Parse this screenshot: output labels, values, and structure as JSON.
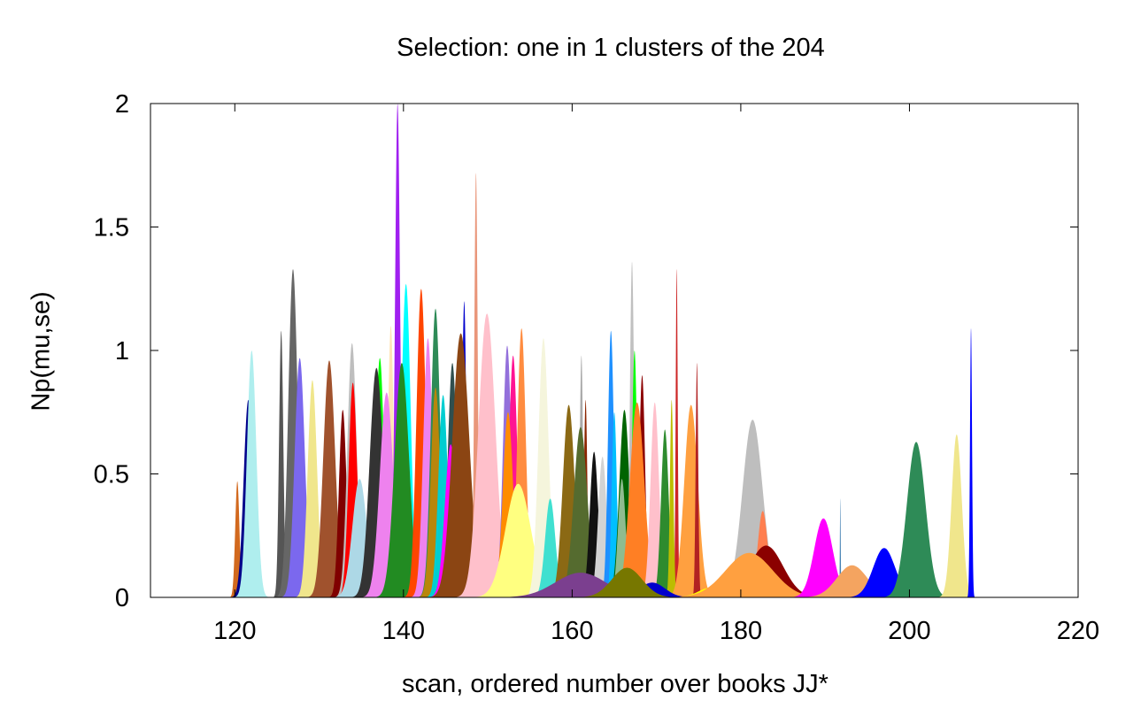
{
  "chart_data": {
    "type": "area",
    "title": "Selection: one in 1 clusters of the 204",
    "xlabel": "scan, ordered number over books JJ*",
    "ylabel": "Np(mu,se)",
    "xlim": [
      110,
      220
    ],
    "ylim": [
      0,
      2
    ],
    "xticks": [
      "120",
      "140",
      "160",
      "180",
      "200",
      "220"
    ],
    "yticks": [
      "0",
      "0.5",
      "1",
      "1.5",
      "2"
    ],
    "xtick_values": [
      120,
      140,
      160,
      180,
      200,
      220
    ],
    "ytick_values": [
      0,
      0.5,
      1,
      1.5,
      2
    ],
    "grid": false,
    "legend": "none",
    "series": [
      {
        "mu": 120.3,
        "sigma": 0.25,
        "peak": 0.47,
        "color": "#d2691e"
      },
      {
        "mu": 121.6,
        "sigma": 0.55,
        "peak": 0.8,
        "color": "#00008b"
      },
      {
        "mu": 122.0,
        "sigma": 0.55,
        "peak": 1.0,
        "color": "#afeeee"
      },
      {
        "mu": 125.5,
        "sigma": 0.25,
        "peak": 1.08,
        "color": "#555555"
      },
      {
        "mu": 126.6,
        "sigma": 0.25,
        "peak": 0.77,
        "color": "#ffa500"
      },
      {
        "mu": 126.9,
        "sigma": 0.55,
        "peak": 1.33,
        "color": "#666666"
      },
      {
        "mu": 127.7,
        "sigma": 0.6,
        "peak": 0.97,
        "color": "#7b68ee"
      },
      {
        "mu": 129.2,
        "sigma": 0.55,
        "peak": 0.88,
        "color": "#f0e68c"
      },
      {
        "mu": 131.2,
        "sigma": 0.7,
        "peak": 0.96,
        "color": "#a0522d"
      },
      {
        "mu": 132.8,
        "sigma": 0.45,
        "peak": 0.76,
        "color": "#800000"
      },
      {
        "mu": 133.9,
        "sigma": 0.55,
        "peak": 1.03,
        "color": "#bebebe"
      },
      {
        "mu": 134.0,
        "sigma": 0.5,
        "peak": 0.87,
        "color": "#ff0000"
      },
      {
        "mu": 134.8,
        "sigma": 0.85,
        "peak": 0.48,
        "color": "#add8e6"
      },
      {
        "mu": 136.2,
        "sigma": 0.55,
        "peak": 0.5,
        "color": "#9400d3"
      },
      {
        "mu": 137.2,
        "sigma": 0.5,
        "peak": 0.97,
        "color": "#00ff00"
      },
      {
        "mu": 136.8,
        "sigma": 0.8,
        "peak": 0.93,
        "color": "#333333"
      },
      {
        "mu": 138.5,
        "sigma": 0.35,
        "peak": 1.1,
        "color": "#ffe4b5"
      },
      {
        "mu": 138.0,
        "sigma": 0.8,
        "peak": 0.83,
        "color": "#ee82ee"
      },
      {
        "mu": 139.3,
        "sigma": 0.3,
        "peak": 2.0,
        "color": "#a020f0"
      },
      {
        "mu": 140.3,
        "sigma": 0.55,
        "peak": 1.27,
        "color": "#00ffff"
      },
      {
        "mu": 139.8,
        "sigma": 0.85,
        "peak": 0.95,
        "color": "#228b22"
      },
      {
        "mu": 142.1,
        "sigma": 0.55,
        "peak": 1.25,
        "color": "#ff4500"
      },
      {
        "mu": 142.9,
        "sigma": 0.55,
        "peak": 1.05,
        "color": "#ee82ee"
      },
      {
        "mu": 143.8,
        "sigma": 0.55,
        "peak": 1.17,
        "color": "#2e8b57"
      },
      {
        "mu": 143.8,
        "sigma": 0.55,
        "peak": 0.85,
        "color": "#b8860b"
      },
      {
        "mu": 144.7,
        "sigma": 0.55,
        "peak": 0.82,
        "color": "#00ced1"
      },
      {
        "mu": 145.8,
        "sigma": 0.55,
        "peak": 0.95,
        "color": "#2f4f4f"
      },
      {
        "mu": 145.6,
        "sigma": 0.7,
        "peak": 0.62,
        "color": "#ff00ff"
      },
      {
        "mu": 147.2,
        "sigma": 0.25,
        "peak": 1.2,
        "color": "#0000cd"
      },
      {
        "mu": 146.8,
        "sigma": 1.0,
        "peak": 1.07,
        "color": "#8b4513"
      },
      {
        "mu": 148.6,
        "sigma": 0.2,
        "peak": 1.72,
        "color": "#e9967a"
      },
      {
        "mu": 149.9,
        "sigma": 1.0,
        "peak": 1.15,
        "color": "#ffc0cb"
      },
      {
        "mu": 152.3,
        "sigma": 0.5,
        "peak": 1.02,
        "color": "#9370db"
      },
      {
        "mu": 153.0,
        "sigma": 0.5,
        "peak": 0.98,
        "color": "#ff1493"
      },
      {
        "mu": 152.4,
        "sigma": 0.6,
        "peak": 0.75,
        "color": "#ff8c00"
      },
      {
        "mu": 154.0,
        "sigma": 0.5,
        "peak": 1.09,
        "color": "#ff8c40"
      },
      {
        "mu": 153.6,
        "sigma": 1.5,
        "peak": 0.46,
        "color": "#ffff80"
      },
      {
        "mu": 156.6,
        "sigma": 0.6,
        "peak": 1.05,
        "color": "#f5f5dc"
      },
      {
        "mu": 157.4,
        "sigma": 0.6,
        "peak": 0.4,
        "color": "#40e0d0"
      },
      {
        "mu": 159.6,
        "sigma": 0.7,
        "peak": 0.78,
        "color": "#8b6914"
      },
      {
        "mu": 161.1,
        "sigma": 0.2,
        "peak": 0.98,
        "color": "#aaaaaa"
      },
      {
        "mu": 161.6,
        "sigma": 0.2,
        "peak": 0.8,
        "color": "#8b2500"
      },
      {
        "mu": 161.0,
        "sigma": 0.8,
        "peak": 0.69,
        "color": "#556b2f"
      },
      {
        "mu": 162.6,
        "sigma": 0.5,
        "peak": 0.59,
        "color": "#111111"
      },
      {
        "mu": 163.6,
        "sigma": 0.5,
        "peak": 0.57,
        "color": "#d3d3d3"
      },
      {
        "mu": 164.6,
        "sigma": 0.35,
        "peak": 1.08,
        "color": "#1e90ff"
      },
      {
        "mu": 165.0,
        "sigma": 0.3,
        "peak": 0.75,
        "color": "#00bfff"
      },
      {
        "mu": 166.2,
        "sigma": 0.6,
        "peak": 0.76,
        "color": "#006400"
      },
      {
        "mu": 165.9,
        "sigma": 0.45,
        "peak": 0.48,
        "color": "#8fbc8f"
      },
      {
        "mu": 167.1,
        "sigma": 0.25,
        "peak": 1.36,
        "color": "#c0c0c0"
      },
      {
        "mu": 167.4,
        "sigma": 0.3,
        "peak": 1.0,
        "color": "#00ff00"
      },
      {
        "mu": 168.3,
        "sigma": 0.35,
        "peak": 0.9,
        "color": "#8b0000"
      },
      {
        "mu": 167.7,
        "sigma": 0.85,
        "peak": 0.79,
        "color": "#ff7f24"
      },
      {
        "mu": 169.8,
        "sigma": 0.5,
        "peak": 0.79,
        "color": "#ffc0cb"
      },
      {
        "mu": 171.0,
        "sigma": 0.45,
        "peak": 0.68,
        "color": "#2e8b2e"
      },
      {
        "mu": 172.4,
        "sigma": 0.12,
        "peak": 1.33,
        "color": "#cd2626"
      },
      {
        "mu": 171.8,
        "sigma": 0.2,
        "peak": 0.8,
        "color": "#bcbc00"
      },
      {
        "mu": 174.1,
        "sigma": 0.8,
        "peak": 0.78,
        "color": "#ffa040"
      },
      {
        "mu": 174.8,
        "sigma": 0.15,
        "peak": 0.95,
        "color": "#b22222"
      },
      {
        "mu": 169.5,
        "sigma": 1.5,
        "peak": 0.06,
        "color": "#0000cd"
      },
      {
        "mu": 176.5,
        "sigma": 1.5,
        "peak": 0.04,
        "color": "#ffff00"
      },
      {
        "mu": 181.4,
        "sigma": 1.2,
        "peak": 0.72,
        "color": "#bebebe"
      },
      {
        "mu": 182.6,
        "sigma": 0.6,
        "peak": 0.35,
        "color": "#ff7f50"
      },
      {
        "mu": 183.0,
        "sigma": 2.0,
        "peak": 0.21,
        "color": "#8b0000"
      },
      {
        "mu": 181.0,
        "sigma": 2.8,
        "peak": 0.18,
        "color": "#ffa040"
      },
      {
        "mu": 189.8,
        "sigma": 1.1,
        "peak": 0.32,
        "color": "#ff00ff"
      },
      {
        "mu": 191.8,
        "sigma": 0.05,
        "peak": 0.4,
        "color": "#4682b4"
      },
      {
        "mu": 193.2,
        "sigma": 1.8,
        "peak": 0.13,
        "color": "#f4a460"
      },
      {
        "mu": 197.0,
        "sigma": 1.3,
        "peak": 0.2,
        "color": "#0000ff"
      },
      {
        "mu": 200.8,
        "sigma": 1.1,
        "peak": 0.63,
        "color": "#2e8b57"
      },
      {
        "mu": 205.6,
        "sigma": 0.6,
        "peak": 0.66,
        "color": "#f0e68c"
      },
      {
        "mu": 207.3,
        "sigma": 0.12,
        "peak": 1.09,
        "color": "#0000ff"
      },
      {
        "mu": 161.0,
        "sigma": 3.0,
        "peak": 0.1,
        "color": "#7b3f8f"
      },
      {
        "mu": 166.5,
        "sigma": 1.8,
        "peak": 0.12,
        "color": "#777700"
      }
    ]
  }
}
